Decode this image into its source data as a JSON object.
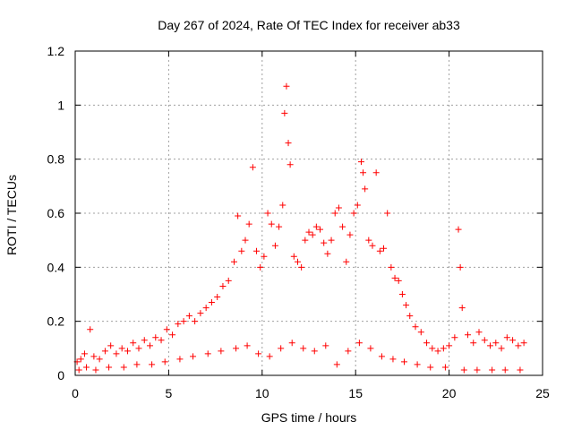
{
  "chart_data": {
    "type": "scatter",
    "title": "Day 267 of 2024, Rate Of TEC Index for receiver ab33",
    "xlabel": "GPS time / hours",
    "ylabel": "ROTI / TECUs",
    "xlim": [
      0,
      25
    ],
    "ylim": [
      0,
      1.2
    ],
    "x_ticks": [
      "0",
      "5",
      "10",
      "15",
      "20",
      "25"
    ],
    "y_ticks": [
      "0",
      "0.2",
      "0.4",
      "0.6",
      "0.8",
      "1",
      "1.2"
    ],
    "grid": true,
    "marker": "plus",
    "color": "#ff0000",
    "series": [
      {
        "x": [
          0.1,
          0.3,
          0.5,
          0.8,
          1.0,
          1.3,
          1.6,
          1.9,
          2.2,
          2.5,
          2.8,
          3.1,
          3.4,
          3.7,
          4.0,
          4.3,
          4.6,
          4.9,
          5.2,
          5.5,
          5.8,
          6.1,
          6.4,
          6.7,
          7.0,
          7.3,
          7.6,
          7.9,
          8.2,
          8.5,
          8.7,
          8.9,
          9.1,
          9.3,
          9.5,
          9.7,
          9.9,
          10.1,
          10.3,
          10.5,
          10.7,
          10.9,
          11.1,
          11.2,
          11.3,
          11.4,
          11.5,
          11.7,
          11.9,
          12.1,
          12.3,
          12.5,
          12.7,
          12.9,
          13.1,
          13.3,
          13.5,
          13.7,
          13.9,
          14.1,
          14.3,
          14.5,
          14.7,
          14.9,
          15.1,
          15.3,
          15.4,
          15.5,
          15.7,
          15.9,
          16.1,
          16.3,
          16.5,
          16.7,
          16.9,
          17.1,
          17.3,
          17.5,
          17.7,
          17.9,
          18.2,
          18.5,
          18.8,
          19.1,
          19.4,
          19.7,
          20.0,
          20.3,
          20.5,
          20.6,
          20.7,
          21.0,
          21.3,
          21.6,
          21.9,
          22.2,
          22.5,
          22.8,
          23.1,
          23.4,
          23.7,
          24.0
        ],
        "y": [
          0.05,
          0.06,
          0.08,
          0.17,
          0.07,
          0.06,
          0.09,
          0.11,
          0.08,
          0.1,
          0.09,
          0.12,
          0.1,
          0.13,
          0.11,
          0.14,
          0.13,
          0.17,
          0.15,
          0.19,
          0.2,
          0.22,
          0.2,
          0.23,
          0.25,
          0.27,
          0.29,
          0.33,
          0.35,
          0.42,
          0.59,
          0.46,
          0.5,
          0.56,
          0.77,
          0.46,
          0.4,
          0.44,
          0.6,
          0.56,
          0.48,
          0.55,
          0.63,
          0.97,
          1.07,
          0.86,
          0.78,
          0.44,
          0.42,
          0.4,
          0.5,
          0.53,
          0.52,
          0.55,
          0.54,
          0.49,
          0.45,
          0.5,
          0.6,
          0.62,
          0.55,
          0.42,
          0.52,
          0.6,
          0.63,
          0.79,
          0.75,
          0.69,
          0.5,
          0.48,
          0.75,
          0.46,
          0.47,
          0.6,
          0.4,
          0.36,
          0.35,
          0.3,
          0.26,
          0.22,
          0.18,
          0.16,
          0.12,
          0.1,
          0.09,
          0.1,
          0.11,
          0.14,
          0.54,
          0.4,
          0.25,
          0.15,
          0.12,
          0.16,
          0.13,
          0.11,
          0.12,
          0.1,
          0.14,
          0.13,
          0.11,
          0.12
        ]
      },
      {
        "x": [
          0.2,
          0.6,
          1.1,
          1.8,
          2.6,
          3.3,
          4.1,
          4.8,
          5.6,
          6.3,
          7.1,
          7.8,
          8.6,
          9.2,
          9.8,
          10.4,
          11.0,
          11.6,
          12.2,
          12.8,
          13.4,
          14.0,
          14.6,
          15.2,
          15.8,
          16.4,
          17.0,
          17.6,
          18.3,
          19.0,
          19.8,
          20.8,
          21.5,
          22.3,
          23.0,
          23.8
        ],
        "y": [
          0.02,
          0.03,
          0.02,
          0.03,
          0.03,
          0.04,
          0.04,
          0.05,
          0.06,
          0.07,
          0.08,
          0.09,
          0.1,
          0.11,
          0.08,
          0.07,
          0.1,
          0.12,
          0.1,
          0.09,
          0.11,
          0.04,
          0.09,
          0.12,
          0.1,
          0.07,
          0.06,
          0.05,
          0.04,
          0.03,
          0.03,
          0.02,
          0.02,
          0.02,
          0.02,
          0.02
        ]
      }
    ]
  }
}
